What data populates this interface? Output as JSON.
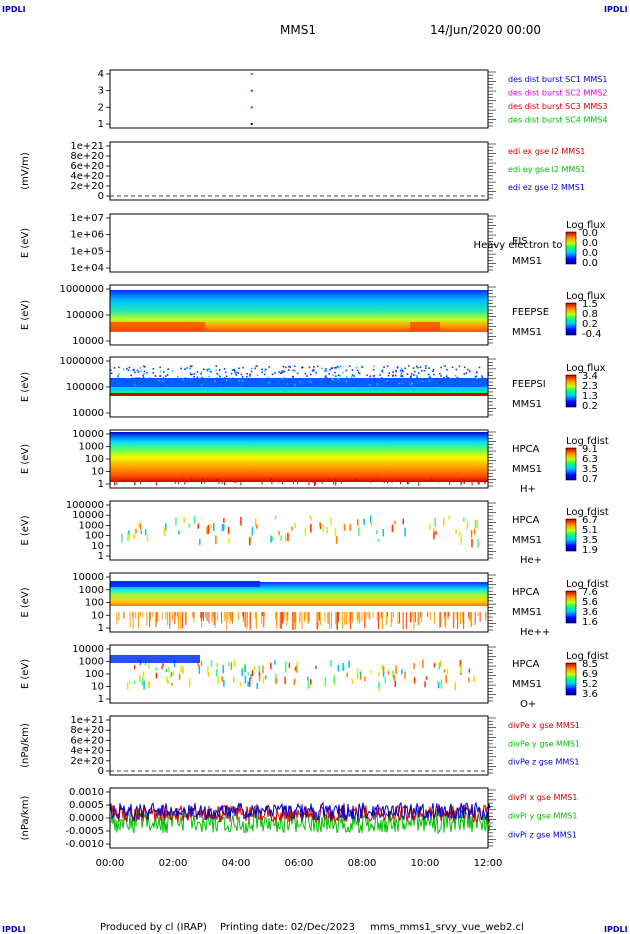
{
  "header": {
    "corner_tl": "IPDLI",
    "corner_tr": "IPDLI",
    "corner_bl": "IPDLI",
    "corner_br": "IPDLI",
    "spacecraft": "MMS1",
    "date_time": "14/Jun/2020 00:00"
  },
  "footer": {
    "produced_by": "Produced by cl (IRAP)",
    "printing_date": "Printing date: 02/Dec/2023",
    "filename": "mms_mms1_srvy_vue_web2.cl"
  },
  "time_axis": [
    "00:00",
    "02:00",
    "04:00",
    "06:00",
    "08:00",
    "10:00",
    "12:00"
  ],
  "colors": {
    "mms1": "#0000c8",
    "mms2": "#e000e0",
    "mms3": "#d00000",
    "mms4": "#00c000",
    "x": "#d00000",
    "y": "#00c000",
    "z": "#0000c8"
  },
  "chart_data": [
    {
      "type": "scatter",
      "name": "panel1",
      "yticks": [
        "4",
        "3",
        "2",
        "1"
      ],
      "ylabel": "",
      "legend": [
        "des dist burst SC1 MMS1",
        "des dist burst SC2 MMS2",
        "des dist burst SC3 MMS3",
        "des dist burst SC4 MMS4"
      ],
      "x_hours": [
        4.5,
        4.5,
        4.5,
        4.5
      ],
      "y": [
        1,
        2,
        3,
        4
      ]
    },
    {
      "type": "line",
      "name": "panel2",
      "yticks": [
        "1e+21",
        "8e+20",
        "6e+20",
        "4e+20",
        "2e+20",
        "0"
      ],
      "ylabel": "(mV/m)",
      "legend": [
        "edi ex gse l2 MMS1",
        "edi ey gse l2 MMS1",
        "edi ez gse l2 MMS1"
      ]
    },
    {
      "type": "heatmap",
      "name": "panel3",
      "yticks": [
        "1e+07",
        "1e+06",
        "1e+05",
        "1e+04"
      ],
      "ylabel": "E (eV)",
      "side": [
        "EIS",
        "MMS1"
      ],
      "overlay": "Heavy electron to",
      "cbar_title": "Log flux",
      "cbar_ticks": [
        "0.0",
        "0.0",
        "0.0",
        "0.0"
      ]
    },
    {
      "type": "heatmap",
      "name": "panel4",
      "yticks": [
        "1000000",
        "100000",
        "10000"
      ],
      "ylabel": "E (eV)",
      "side": [
        "FEEPSE",
        "MMS1"
      ],
      "cbar_title": "Log flux",
      "cbar_ticks": [
        "1.5",
        "0.8",
        "0.2",
        "-0.4"
      ]
    },
    {
      "type": "heatmap",
      "name": "panel5",
      "yticks": [
        "1000000",
        "100000",
        "10000"
      ],
      "ylabel": "E (eV)",
      "side": [
        "FEEPSI",
        "MMS1"
      ],
      "cbar_title": "Log flux",
      "cbar_ticks": [
        "3.4",
        "2.3",
        "1.3",
        "0.2"
      ]
    },
    {
      "type": "heatmap",
      "name": "panel6",
      "yticks": [
        "10000",
        "1000",
        "100",
        "10",
        "1"
      ],
      "ylabel": "E (eV)",
      "side": [
        "HPCA",
        "MMS1",
        "H+"
      ],
      "cbar_title": "Log fdist",
      "cbar_ticks": [
        "9.1",
        "6.3",
        "3.5",
        "0.7"
      ]
    },
    {
      "type": "heatmap",
      "name": "panel7",
      "yticks": [
        "100000",
        "10000",
        "1000",
        "100",
        "10",
        "1"
      ],
      "ylabel": "E (eV)",
      "side": [
        "HPCA",
        "MMS1",
        "He+"
      ],
      "cbar_title": "Log fdist",
      "cbar_ticks": [
        "6.7",
        "5.1",
        "3.5",
        "1.9"
      ]
    },
    {
      "type": "heatmap",
      "name": "panel8",
      "yticks": [
        "10000",
        "1000",
        "100",
        "10",
        "1"
      ],
      "ylabel": "E (eV)",
      "side": [
        "HPCA",
        "MMS1",
        "He++"
      ],
      "cbar_title": "Log fdist",
      "cbar_ticks": [
        "7.6",
        "5.6",
        "3.6",
        "1.6"
      ]
    },
    {
      "type": "heatmap",
      "name": "panel9",
      "yticks": [
        "10000",
        "1000",
        "100",
        "10",
        "1"
      ],
      "ylabel": "E (eV)",
      "side": [
        "HPCA",
        "MMS1",
        "O+"
      ],
      "cbar_title": "Log fdist",
      "cbar_ticks": [
        "8.5",
        "6.9",
        "5.2",
        "3.6"
      ]
    },
    {
      "type": "line",
      "name": "panel10",
      "yticks": [
        "1e+21",
        "8e+20",
        "6e+20",
        "4e+20",
        "2e+20",
        "0"
      ],
      "ylabel": "(nPa/km)",
      "legend": [
        "divPe x gse MMS1",
        "divPe y gse MMS1",
        "divPe z gse MMS1"
      ]
    },
    {
      "type": "line",
      "name": "panel11",
      "yticks": [
        "0.0010",
        "0.0005",
        "0.0000",
        "-0.0005",
        "-0.0010"
      ],
      "ylabel": "(nPa/km)",
      "legend": [
        "divPi x gse MMS1",
        "divPi y gse MMS1",
        "divPi z gse MMS1"
      ],
      "ylim": [
        -0.0012,
        0.0012
      ]
    }
  ]
}
